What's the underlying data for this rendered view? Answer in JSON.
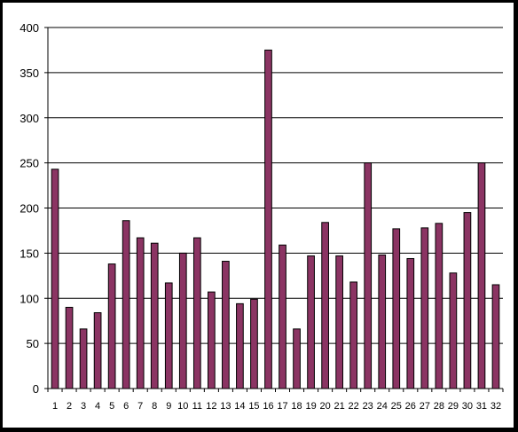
{
  "chart_data": {
    "type": "bar",
    "categories": [
      "1",
      "2",
      "3",
      "4",
      "5",
      "6",
      "7",
      "8",
      "9",
      "10",
      "11",
      "12",
      "13",
      "14",
      "15",
      "16",
      "17",
      "18",
      "19",
      "20",
      "21",
      "22",
      "23",
      "24",
      "25",
      "26",
      "27",
      "28",
      "29",
      "30",
      "31",
      "32"
    ],
    "values": [
      243,
      90,
      66,
      84,
      138,
      186,
      167,
      161,
      117,
      150,
      167,
      107,
      141,
      94,
      99,
      375,
      159,
      66,
      147,
      184,
      147,
      118,
      250,
      148,
      177,
      144,
      178,
      183,
      128,
      195,
      250,
      115
    ],
    "yticks": [
      "0",
      "50",
      "100",
      "150",
      "200",
      "250",
      "300",
      "350",
      "400"
    ],
    "ylim": [
      0,
      400
    ],
    "grid": true,
    "bar_color": "#8B3463",
    "background": "#FFFFFF"
  }
}
